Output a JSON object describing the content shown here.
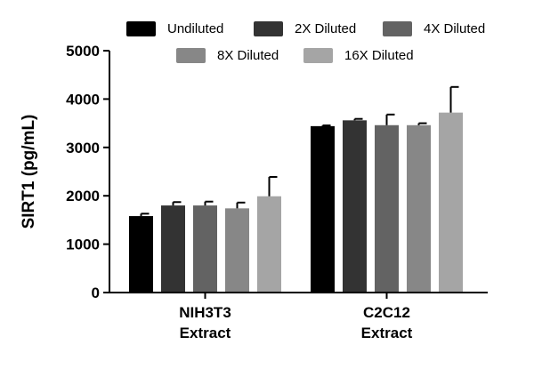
{
  "chart_data": {
    "type": "bar",
    "title": "",
    "ylabel": "SIRT1 (pg/mL)",
    "xlabel": "",
    "ylim": [
      0,
      5000
    ],
    "yticks": [
      "0",
      "1000",
      "2000",
      "3000",
      "4000",
      "5000"
    ],
    "ytick_values": [
      0,
      1000,
      2000,
      3000,
      4000,
      5000
    ],
    "categories": [
      {
        "line1": "NIH3T3",
        "line2": "Extract"
      },
      {
        "line1": "C2C12",
        "line2": "Extract"
      }
    ],
    "series": [
      {
        "name": "Undiluted",
        "color": "#000000",
        "values": [
          1580,
          3440
        ],
        "errors": [
          50,
          15
        ]
      },
      {
        "name": "2X Diluted",
        "color": "#333333",
        "values": [
          1800,
          3560
        ],
        "errors": [
          70,
          30
        ]
      },
      {
        "name": "4X Diluted",
        "color": "#636363",
        "values": [
          1800,
          3460
        ],
        "errors": [
          80,
          220
        ]
      },
      {
        "name": "8X Diluted",
        "color": "#878787",
        "values": [
          1740,
          3460
        ],
        "errors": [
          120,
          40
        ]
      },
      {
        "name": "16X Diluted",
        "color": "#a5a5a5",
        "values": [
          1990,
          3720
        ],
        "errors": [
          400,
          530
        ]
      }
    ],
    "legend_position": "top",
    "grid": false
  }
}
